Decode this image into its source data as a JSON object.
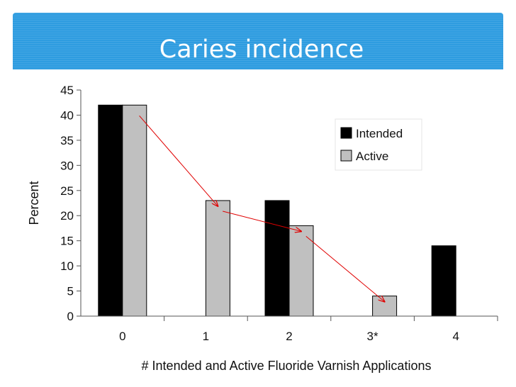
{
  "slide": {
    "title": "Caries incidence",
    "colors": {
      "title_band": "#2e9ce0",
      "title_text": "#ffffff",
      "arrow": "#e00000"
    }
  },
  "chart_data": {
    "type": "bar",
    "categories": [
      "0",
      "1",
      "2",
      "3*",
      "4"
    ],
    "series": [
      {
        "name": "Intended",
        "values": [
          42,
          0,
          23,
          0,
          14
        ],
        "color": "#000000"
      },
      {
        "name": "Active",
        "values": [
          42,
          23,
          18,
          4,
          null
        ],
        "color": "#c0c0c0"
      }
    ],
    "xlabel": "# Intended and Active Fluoride Varnish Applications",
    "ylabel": "Percent",
    "ylim": [
      0,
      45
    ],
    "yticks": [
      0,
      5,
      10,
      15,
      20,
      25,
      30,
      35,
      40,
      45
    ],
    "grid": false,
    "legend_position": "top-right",
    "annotations": [
      {
        "type": "trend-arrows",
        "series": "Active",
        "from_to": [
          [
            "0",
            "1"
          ],
          [
            "1",
            "2"
          ],
          [
            "2",
            "3*"
          ]
        ]
      }
    ]
  }
}
